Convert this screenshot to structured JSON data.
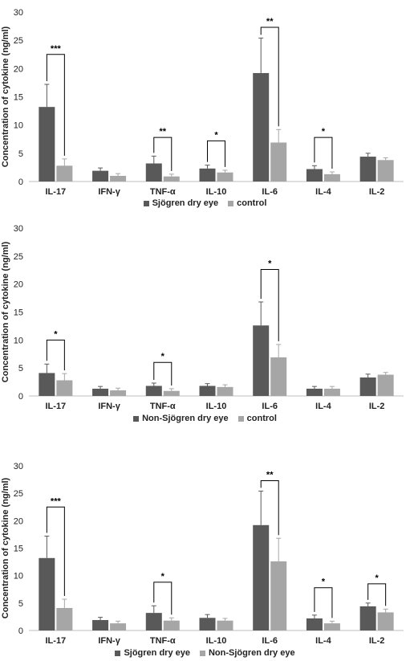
{
  "colors": {
    "series1": "#595959",
    "series2": "#a6a6a6",
    "axis": "#bfbfbf",
    "text": "#222222"
  },
  "chart_data": [
    {
      "type": "bar",
      "categories": [
        "IL-17",
        "IFN-γ",
        "TNF-α",
        "IL-10",
        "IL-6",
        "IL-4",
        "IL-2"
      ],
      "ylabel": "Concentration of cytokine (ng/ml)",
      "ylim": [
        0,
        30
      ],
      "yticks": [
        "0",
        "5",
        "10",
        "15",
        "20",
        "25",
        "30"
      ],
      "legend_position": "bottom",
      "series": [
        {
          "name": "Sjögren dry eye",
          "values": [
            13.2,
            1.9,
            3.2,
            2.3,
            19.2,
            2.2,
            4.4
          ],
          "errors": [
            4.0,
            0.5,
            1.3,
            0.6,
            6.2,
            0.6,
            0.6
          ]
        },
        {
          "name": "control",
          "values": [
            2.8,
            1.0,
            0.9,
            1.6,
            6.9,
            1.3,
            3.8
          ],
          "errors": [
            1.2,
            0.4,
            0.4,
            0.4,
            2.3,
            0.4,
            0.4
          ]
        }
      ],
      "significance": [
        {
          "category": "IL-17",
          "label": "***",
          "top": 22.5
        },
        {
          "category": "TNF-α",
          "label": "**",
          "top": 7.8
        },
        {
          "category": "IL-10",
          "label": "*",
          "top": 7.2
        },
        {
          "category": "IL-6",
          "label": "**",
          "top": 27.3
        },
        {
          "category": "IL-4",
          "label": "*",
          "top": 7.8
        }
      ]
    },
    {
      "type": "bar",
      "categories": [
        "IL-17",
        "IFN-γ",
        "TNF-α",
        "IL-10",
        "IL-6",
        "IL-4",
        "IL-2"
      ],
      "ylabel": "Concentration of cytokine (ng/ml)",
      "ylim": [
        0,
        30
      ],
      "yticks": [
        "0",
        "5",
        "10",
        "15",
        "20",
        "25",
        "30"
      ],
      "legend_position": "bottom",
      "series": [
        {
          "name": "Non-Sjögren dry eye",
          "values": [
            4.1,
            1.3,
            1.8,
            1.8,
            12.6,
            1.3,
            3.3
          ],
          "errors": [
            1.6,
            0.4,
            0.5,
            0.4,
            4.2,
            0.4,
            0.6
          ]
        },
        {
          "name": "control",
          "values": [
            2.8,
            1.0,
            0.9,
            1.6,
            6.9,
            1.3,
            3.8
          ],
          "errors": [
            1.2,
            0.4,
            0.4,
            0.4,
            2.3,
            0.4,
            0.4
          ]
        }
      ],
      "significance": [
        {
          "category": "IL-17",
          "label": "*",
          "top": 10.0
        },
        {
          "category": "TNF-α",
          "label": "*",
          "top": 6.0
        },
        {
          "category": "IL-6",
          "label": "*",
          "top": 22.6
        }
      ]
    },
    {
      "type": "bar",
      "categories": [
        "IL-17",
        "IFN-γ",
        "TNF-α",
        "IL-10",
        "IL-6",
        "IL-4",
        "IL-2"
      ],
      "ylabel": "Concentration of cytokine (ng/ml)",
      "ylim": [
        0,
        30
      ],
      "yticks": [
        "0",
        "5",
        "10",
        "15",
        "20",
        "25",
        "30"
      ],
      "legend_position": "bottom",
      "series": [
        {
          "name": "Sjögren dry eye",
          "values": [
            13.2,
            1.9,
            3.2,
            2.3,
            19.2,
            2.2,
            4.4
          ],
          "errors": [
            4.0,
            0.5,
            1.3,
            0.6,
            6.2,
            0.6,
            0.6
          ]
        },
        {
          "name": "Non-Sjögren dry eye",
          "values": [
            4.1,
            1.3,
            1.8,
            1.8,
            12.6,
            1.3,
            3.3
          ],
          "errors": [
            1.6,
            0.4,
            0.5,
            0.4,
            4.2,
            0.4,
            0.6
          ]
        }
      ],
      "significance": [
        {
          "category": "IL-17",
          "label": "***",
          "top": 22.5
        },
        {
          "category": "TNF-α",
          "label": "*",
          "top": 8.8
        },
        {
          "category": "IL-6",
          "label": "**",
          "top": 27.3
        },
        {
          "category": "IL-4",
          "label": "*",
          "top": 7.8
        },
        {
          "category": "IL-2",
          "label": "*",
          "top": 8.5
        }
      ]
    }
  ]
}
